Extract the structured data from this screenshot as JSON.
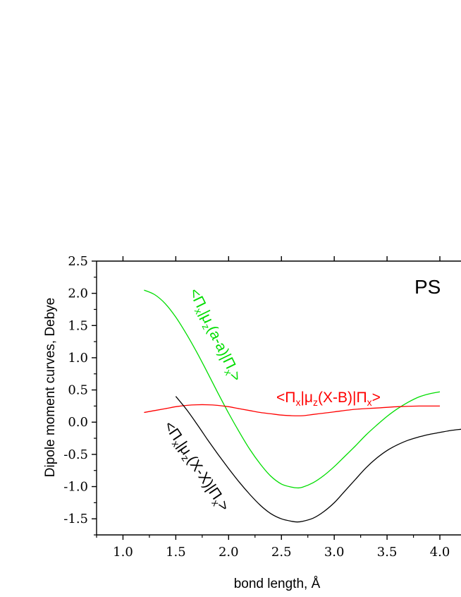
{
  "chart_data": {
    "type": "line",
    "title": "",
    "panel_label": "PS",
    "xlabel": "bond length, Å",
    "ylabel": "Dipole moment curves, Debye",
    "xlim": [
      0.75,
      4.2
    ],
    "ylim": [
      -1.75,
      2.5
    ],
    "xticks": [
      1.0,
      1.5,
      2.0,
      2.5,
      3.0,
      3.5,
      4.0
    ],
    "xtick_labels": [
      "1.0",
      "1.5",
      "2.0",
      "2.5",
      "3.0",
      "3.5",
      "4.0"
    ],
    "yticks": [
      2.5,
      2.0,
      1.5,
      1.0,
      0.5,
      0.0,
      -0.5,
      -1.0,
      -1.5
    ],
    "ytick_labels": [
      "2.5",
      "2.0",
      "1.5",
      "1.0",
      "0.5",
      "0.0",
      "-0.5",
      "-1.0",
      "-1.5"
    ],
    "grid": false,
    "series": [
      {
        "color": "#00dd00",
        "label_parts": [
          "<Π",
          "x",
          "|μ",
          "z",
          "(a-a)|Π",
          "x",
          ">"
        ],
        "x": [
          1.2,
          1.3,
          1.4,
          1.5,
          1.6,
          1.7,
          1.8,
          1.9,
          2.0,
          2.1,
          2.2,
          2.3,
          2.4,
          2.5,
          2.6,
          2.65,
          2.7,
          2.8,
          2.9,
          3.0,
          3.1,
          3.2,
          3.3,
          3.4,
          3.5,
          3.6,
          3.7,
          3.8,
          3.9,
          4.0
        ],
        "y": [
          2.05,
          1.98,
          1.84,
          1.63,
          1.37,
          1.08,
          0.77,
          0.45,
          0.14,
          -0.15,
          -0.42,
          -0.65,
          -0.84,
          -0.96,
          -1.01,
          -1.02,
          -1.01,
          -0.94,
          -0.83,
          -0.69,
          -0.53,
          -0.37,
          -0.2,
          -0.05,
          0.09,
          0.21,
          0.31,
          0.39,
          0.44,
          0.47
        ]
      },
      {
        "color": "#ff0000",
        "label_parts": [
          "<Π",
          "x",
          "|μ",
          "z",
          "(X-B)|Π",
          "x",
          ">"
        ],
        "x": [
          1.2,
          1.3,
          1.4,
          1.5,
          1.6,
          1.7,
          1.8,
          1.9,
          2.0,
          2.1,
          2.2,
          2.3,
          2.4,
          2.5,
          2.6,
          2.7,
          2.8,
          2.9,
          3.0,
          3.2,
          3.4,
          3.6,
          3.8,
          4.0
        ],
        "y": [
          0.15,
          0.18,
          0.21,
          0.24,
          0.26,
          0.27,
          0.27,
          0.26,
          0.24,
          0.21,
          0.18,
          0.15,
          0.13,
          0.11,
          0.1,
          0.1,
          0.12,
          0.14,
          0.16,
          0.2,
          0.22,
          0.24,
          0.25,
          0.25
        ]
      },
      {
        "color": "#000000",
        "label_parts": [
          "<Π",
          "x",
          "|μ",
          "z",
          "(X-X)|Π",
          "x",
          ">"
        ],
        "x": [
          1.5,
          1.6,
          1.7,
          1.8,
          1.9,
          2.0,
          2.1,
          2.2,
          2.3,
          2.4,
          2.5,
          2.6,
          2.65,
          2.7,
          2.8,
          2.9,
          3.0,
          3.1,
          3.2,
          3.3,
          3.4,
          3.5,
          3.6,
          3.7,
          3.8,
          3.9,
          4.0,
          4.1,
          4.2
        ],
        "y": [
          0.4,
          0.2,
          -0.03,
          -0.27,
          -0.5,
          -0.72,
          -0.93,
          -1.12,
          -1.29,
          -1.42,
          -1.5,
          -1.54,
          -1.55,
          -1.54,
          -1.49,
          -1.39,
          -1.25,
          -1.07,
          -0.89,
          -0.71,
          -0.56,
          -0.44,
          -0.35,
          -0.28,
          -0.23,
          -0.19,
          -0.16,
          -0.13,
          -0.11
        ]
      }
    ]
  }
}
